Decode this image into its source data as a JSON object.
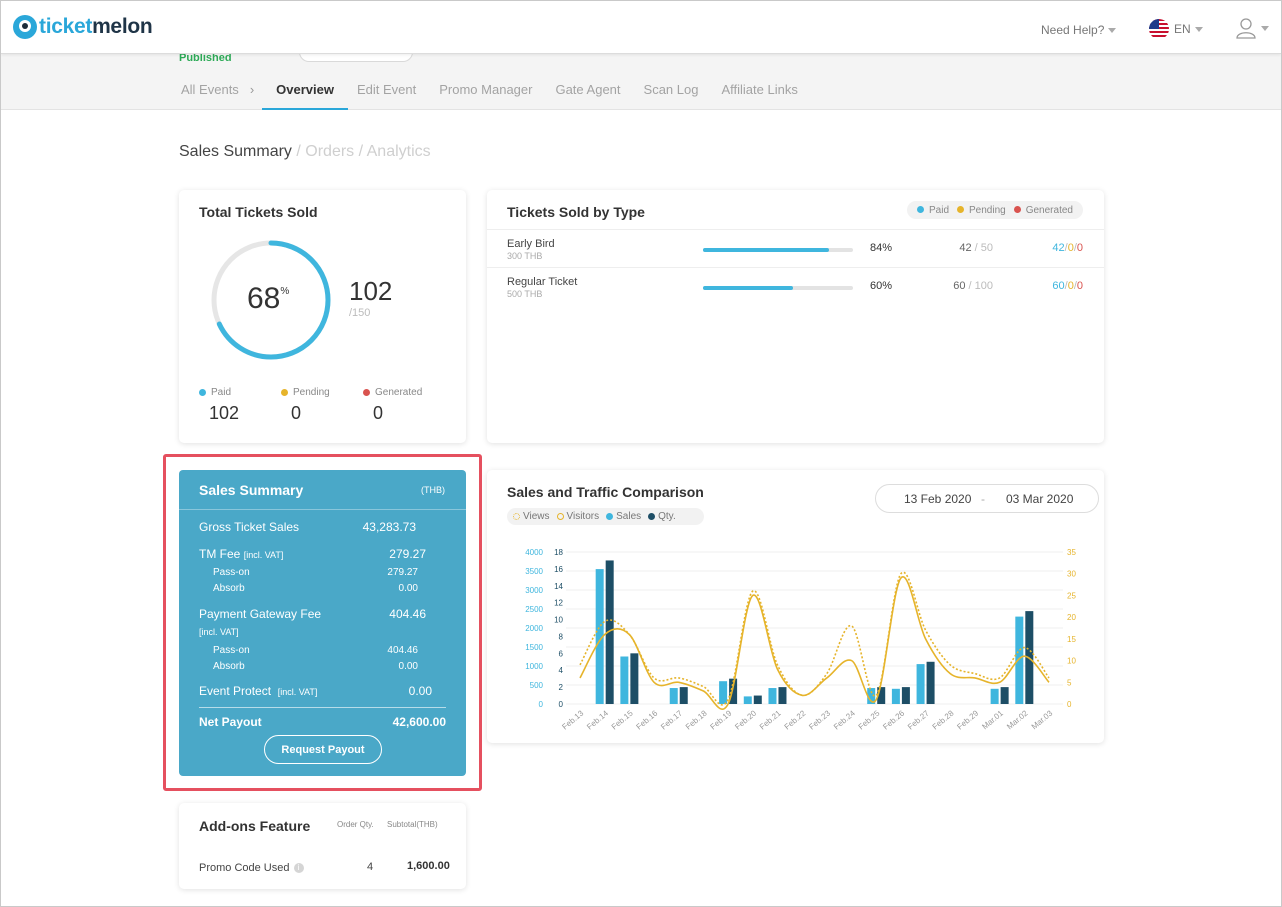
{
  "brand": {
    "name_a": "ticket",
    "name_b": "melon",
    "colors": {
      "accent": "#2aa7d9",
      "summary_bg": "#4aa8c8",
      "highlight": "#e5505f",
      "paid": "#3fb6de",
      "pending": "#e6b42b",
      "generated": "#d9534f",
      "sales_dark": "#1d4e66"
    }
  },
  "header": {
    "help": "Need Help?",
    "lang": "EN",
    "user_icon": "user-icon",
    "flag_icon": "us-flag-icon"
  },
  "event": {
    "status": "Published"
  },
  "tabs": {
    "all_events": "All Events",
    "overview": "Overview",
    "edit_event": "Edit Event",
    "promo_manager": "Promo Manager",
    "gate_agent": "Gate Agent",
    "scan_log": "Scan Log",
    "affiliate_links": "Affiliate Links"
  },
  "breadcrumb": {
    "current": "Sales Summary",
    "orders": "/ Orders",
    "analytics": "/ Analytics"
  },
  "total": {
    "title": "Total Tickets Sold",
    "percent": "68",
    "percent_value": 68,
    "sold": "102",
    "capacity": "/150",
    "paid_label": "Paid",
    "paid_value": "102",
    "pending_label": "Pending",
    "pending_value": "0",
    "generated_label": "Generated",
    "generated_value": "0"
  },
  "by_type": {
    "title": "Tickets Sold by Type",
    "legend": {
      "paid": "Paid",
      "pending": "Pending",
      "generated": "Generated"
    },
    "rows": [
      {
        "name": "Early Bird",
        "price": "300 THB",
        "percent": "84%",
        "fill": 84,
        "sold": "42",
        "cap": " / 50",
        "paid": "42",
        "pending": "0",
        "generated": "0"
      },
      {
        "name": "Regular Ticket",
        "price": "500 THB",
        "percent": "60%",
        "fill": 60,
        "sold": "60",
        "cap": " / 100",
        "paid": "60",
        "pending": "0",
        "generated": "0"
      }
    ]
  },
  "sales": {
    "title": "Sales Summary",
    "currency": "(THB)",
    "gross_label": "Gross Ticket Sales",
    "gross_value": "43,283.73",
    "tm_label": "TM Fee",
    "tm_note": "[incl. VAT]",
    "tm_value": "279.27",
    "tm_passon_label": "Pass-on",
    "tm_passon_value": "279.27",
    "tm_absorb_label": "Absorb",
    "tm_absorb_value": "0.00",
    "pg_label": "Payment Gateway Fee",
    "pg_note": "[incl. VAT]",
    "pg_value": "404.46",
    "pg_passon_label": "Pass-on",
    "pg_passon_value": "404.46",
    "pg_absorb_label": "Absorb",
    "pg_absorb_value": "0.00",
    "ep_label": "Event Protect",
    "ep_note": "[incl. VAT]",
    "ep_value": "0.00",
    "net_label": "Net Payout",
    "net_value": "42,600.00",
    "payout_button": "Request Payout"
  },
  "comparison": {
    "title": "Sales and Traffic Comparison",
    "legend": {
      "views": "Views",
      "visitors": "Visitors",
      "sales": "Sales",
      "qty": "Qty."
    },
    "date_from": "13 Feb 2020",
    "date_sep": "-",
    "date_to": "03 Mar 2020"
  },
  "chart_data": {
    "type": "bar",
    "categories": [
      "Feb.13",
      "Feb.14",
      "Feb.15",
      "Feb.16",
      "Feb.17",
      "Feb.18",
      "Feb.19",
      "Feb.20",
      "Feb.21",
      "Feb.22",
      "Feb.23",
      "Feb.24",
      "Feb.25",
      "Feb.26",
      "Feb.27",
      "Feb.28",
      "Feb.29",
      "Mar.01",
      "Mar.02",
      "Mar.03"
    ],
    "y_left_outer_ticks": [
      "0",
      "500",
      "1000",
      "1500",
      "2000",
      "2500",
      "3000",
      "3500",
      "4000"
    ],
    "y_left_inner_ticks": [
      "0",
      "2",
      "4",
      "6",
      "8",
      "10",
      "12",
      "14",
      "16",
      "18"
    ],
    "y_right_ticks": [
      "0",
      "5",
      "10",
      "15",
      "20",
      "25",
      "30",
      "35"
    ],
    "y_left_outer_range": [
      0,
      4000
    ],
    "y_left_inner_range": [
      0,
      18
    ],
    "y_right_range": [
      0,
      35
    ],
    "series": [
      {
        "name": "Sales",
        "axis": "left_outer",
        "kind": "bar",
        "values": [
          0,
          3550,
          1250,
          0,
          420,
          0,
          600,
          200,
          420,
          0,
          0,
          0,
          420,
          400,
          1050,
          0,
          0,
          400,
          2300,
          0
        ]
      },
      {
        "name": "Qty.",
        "axis": "left_inner",
        "kind": "bar",
        "values": [
          0,
          17,
          6,
          0,
          2,
          0,
          3,
          1,
          2,
          0,
          0,
          0,
          2,
          2,
          5,
          0,
          0,
          2,
          11,
          0
        ]
      },
      {
        "name": "Views",
        "axis": "right",
        "kind": "line-dotted",
        "values": [
          9,
          19,
          16,
          6,
          6,
          4,
          1,
          26,
          9,
          2,
          7,
          18,
          2,
          30,
          17,
          9,
          7,
          6,
          13,
          6
        ]
      },
      {
        "name": "Visitors",
        "axis": "right",
        "kind": "line",
        "values": [
          6,
          16,
          16,
          5,
          5,
          3,
          0,
          25,
          8,
          2,
          6,
          10,
          1,
          29,
          15,
          7,
          6,
          5,
          11,
          5
        ]
      }
    ]
  },
  "addons": {
    "title": "Add-ons Feature",
    "col_qty": "Order Qty.",
    "col_subtotal": "Subtotal(THB)",
    "item_name": "Promo Code Used",
    "item_qty": "4",
    "item_subtotal": "1,600.00"
  }
}
